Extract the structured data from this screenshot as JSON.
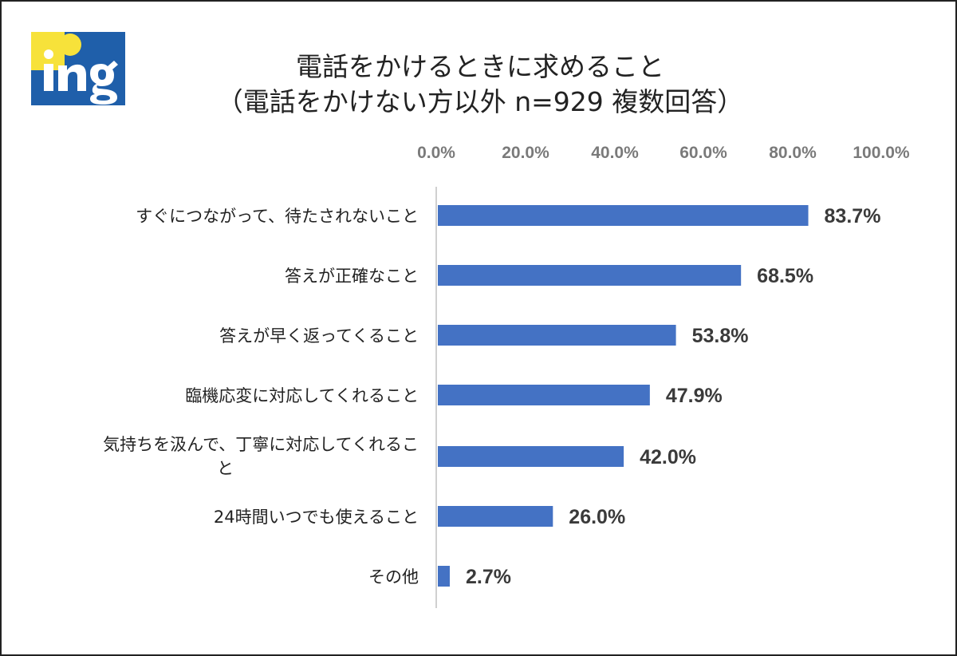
{
  "logo_text": "ing",
  "colors": {
    "bar": "#4472C4",
    "logo_blue": "#1F5FAA",
    "logo_yellow": "#F7E23A",
    "axis_line": "#d0d0d0"
  },
  "chart_data": {
    "type": "bar",
    "orientation": "horizontal",
    "title": "電話をかけるときに求めること",
    "subtitle": "（電話をかけない方以外 n=929 複数回答）",
    "categories": [
      "すぐにつながって、待たされないこと",
      "答えが正確なこと",
      "答えが早く返ってくること",
      "臨機応変に対応してくれること",
      "気持ちを汲んで、丁寧に対応してくれること",
      "24時間いつでも使えること",
      "その他"
    ],
    "category_display_lines": [
      [
        "すぐにつながって、待たされないこと"
      ],
      [
        "答えが正確なこと"
      ],
      [
        "答えが早く返ってくること"
      ],
      [
        "臨機応変に対応してくれること"
      ],
      [
        "気持ちを汲んで、丁寧に対応してくれるこ",
        "と"
      ],
      [
        "24時間いつでも使えること"
      ],
      [
        "その他"
      ]
    ],
    "values": [
      83.7,
      68.5,
      53.8,
      47.9,
      42.0,
      26.0,
      2.7
    ],
    "value_labels": [
      "83.7%",
      "68.5%",
      "53.8%",
      "47.9%",
      "42.0%",
      "26.0%",
      "2.7%"
    ],
    "xlim": [
      0,
      100
    ],
    "x_ticks": [
      "0.0%",
      "20.0%",
      "40.0%",
      "60.0%",
      "80.0%",
      "100.0%"
    ],
    "x_axis_position": "top",
    "grid": false,
    "legend": "none"
  }
}
